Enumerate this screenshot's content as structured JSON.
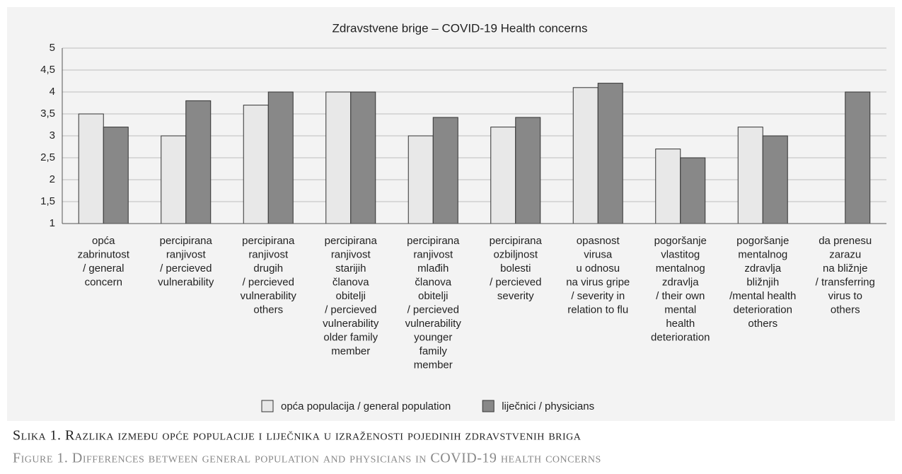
{
  "chart_data": {
    "type": "bar",
    "title": "Zdravstvene brige – COVID-19 Health concerns",
    "categories": [
      "opća\nzabrinutost\n/ general\nconcern",
      "percipirana\nranjivost\n/ percieved\nvulnerability",
      "percipirana\nranjivost\ndrugih\n/ percieved\nvulnerability\nothers",
      "percipirana\nranjivost\nstarijih\nčlanova\nobitelji\n/ percieved\nvulnerability\nolder family\nmember",
      "percipirana\nranjivost\nmlađih\nčlanova\nobitelji\n/ percieved\nvulnerability\nyounger\nfamily\nmember",
      "percipirana\nozbiljnost\nbolesti\n/ percieved\nseverity",
      "opasnost\nvirusa\nu odnosu\nna virus gripe\n/ severity in\nrelation to flu",
      "pogoršanje\nvlastitog\nmentalnog\nzdravlja\n/ their own\nmental\nhealth\ndeterioration",
      "pogoršanje\nmentalnog\nzdravlja\nbližnjih\n/mental health\ndeterioration\nothers",
      "da prenesu\nzarazu\nna bližnje\n/ transferring\nvirus to\nothers"
    ],
    "series": [
      {
        "name": "opća populacija / general population",
        "color": "#e8e8e8",
        "values": [
          3.5,
          3.0,
          3.7,
          4.0,
          3.0,
          3.2,
          4.1,
          2.7,
          3.2,
          null
        ]
      },
      {
        "name": "liječnici / physicians",
        "color": "#888888",
        "values": [
          3.2,
          3.8,
          4.0,
          4.0,
          3.42,
          3.42,
          4.2,
          2.5,
          3.0,
          4.0
        ]
      }
    ],
    "ylim": [
      1,
      5
    ],
    "yticks": [
      1,
      {
        "value": 1.5,
        "label": "1,5"
      },
      2,
      {
        "value": 2.5,
        "label": "2,5"
      },
      3,
      {
        "value": 3.5,
        "label": "3,5"
      },
      4,
      {
        "value": 4.5,
        "label": "4,5"
      },
      5
    ],
    "grid": true,
    "legend": "bottom"
  },
  "captions": [
    "Slika 1. Razlika između opće populacije i liječnika u izraženosti pojedinih zdravstvenih briga",
    "Figure 1. Differences between general population and physicians in COVID-19 health concerns"
  ]
}
